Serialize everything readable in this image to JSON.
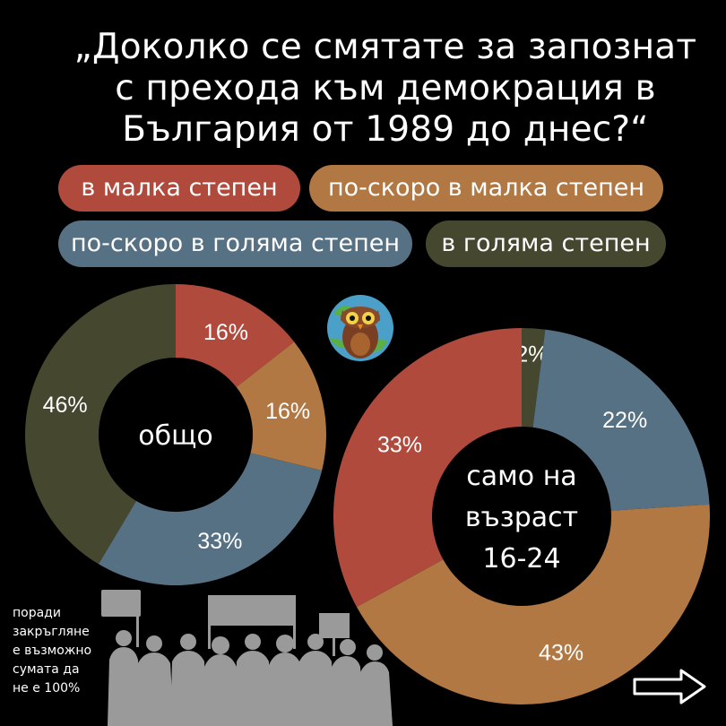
{
  "title": {
    "lines": [
      "„Доколко се смятате за запознат",
      "с прехода към демокрация в",
      "България от 1989 до днес?“"
    ]
  },
  "legend": [
    {
      "label": "в малка степен",
      "color": "#B04A3C"
    },
    {
      "label": "по-скоро в малка степен",
      "color": "#B27843"
    },
    {
      "label": "по-скоро в голяма степен",
      "color": "#577184"
    },
    {
      "label": "в голяма степен",
      "color": "#45482F"
    }
  ],
  "footnote": {
    "lines": [
      "поради",
      "закръгляне",
      "е възможно",
      "сумата да",
      "не е 100%"
    ]
  },
  "chart_data": [
    {
      "type": "pie",
      "title": "",
      "center_label": [
        "общо"
      ],
      "categories": [
        "в малка степен",
        "по-скоро в малка степен",
        "по-скоро в голяма степен",
        "в голяма степен"
      ],
      "values": [
        16,
        16,
        33,
        46
      ],
      "labels": [
        "16%",
        "16%",
        "33%",
        "46%"
      ]
    },
    {
      "type": "pie",
      "title": "",
      "center_label": [
        "само на",
        "възраст",
        "16-24"
      ],
      "categories": [
        "в малка степен",
        "по-скоро в малка степен",
        "по-скоро в голяма степен",
        "в голяма степен"
      ],
      "values": [
        33,
        43,
        22,
        2
      ],
      "labels": [
        "33%",
        "43%",
        "22%",
        "2%"
      ]
    }
  ]
}
